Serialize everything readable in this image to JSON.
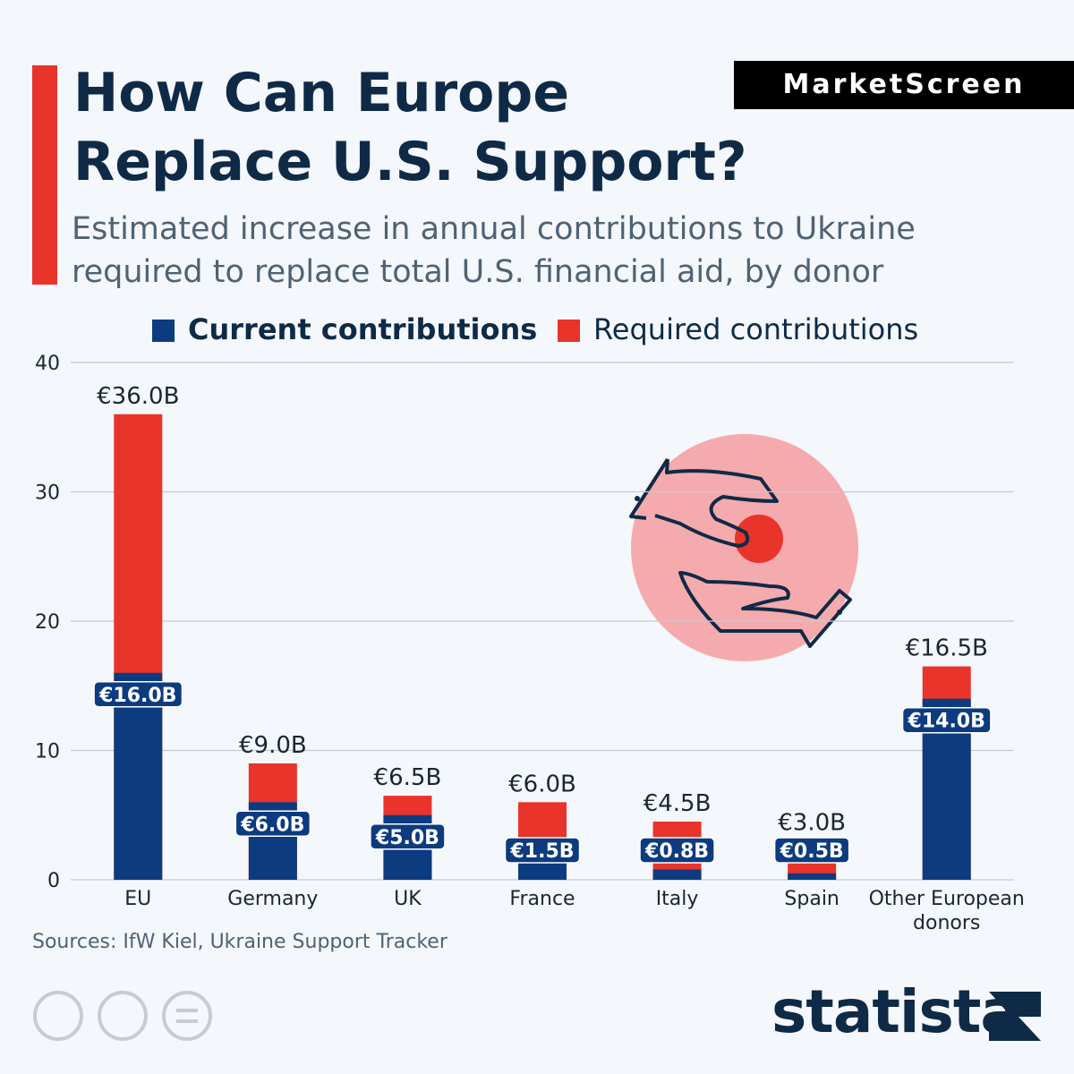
{
  "chart_data": {
    "type": "bar",
    "brand": "MarketScreen",
    "title": "How Can Europe Replace U.S. Support?",
    "subtitle": "Estimated increase in annual contributions to Ukraine required to replace total U.S. financial aid, by donor",
    "categories": [
      "EU",
      "Germany",
      "UK",
      "France",
      "Italy",
      "Spain",
      "Other European donors"
    ],
    "series": [
      {
        "name": "Required contributions",
        "color": "#e8342a",
        "values": [
          36,
          9,
          6.5,
          6,
          4.5,
          3,
          16.5
        ],
        "value_labels": [
          "€36.0B",
          "€9.0B",
          "€6.5B",
          "€6.0B",
          "€4.5B",
          "€3.0B",
          "€16.5B"
        ]
      },
      {
        "name": "Current contributions",
        "color": "#0d3b7f",
        "values": [
          16,
          6,
          5,
          1.5,
          0.8,
          0.5,
          14
        ],
        "value_labels": [
          "€16.0B",
          "€6.0B",
          "€5.0B",
          "€1.5B",
          "€0.8B",
          "€0.5B",
          "€14.0B"
        ]
      }
    ],
    "legend_order": [
      1,
      0
    ],
    "ylim": [
      0,
      40
    ],
    "yticks": [
      0,
      10,
      20,
      30,
      40
    ],
    "grid": true,
    "source": "Sources: IfW Kiel, Ukraine Support Tracker",
    "publisher": "statista"
  }
}
